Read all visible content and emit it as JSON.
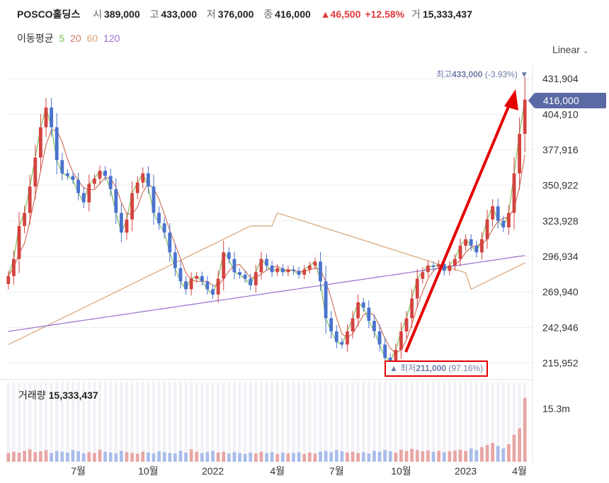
{
  "header": {
    "name": "POSCO홀딩스",
    "open_label": "시",
    "open": "389,000",
    "high_label": "고",
    "high": "433,000",
    "low_label": "저",
    "low": "376,000",
    "close_label": "종",
    "close": "416,000",
    "change": "▲46,500",
    "change_pct": "+12.58%",
    "volume_label": "거",
    "volume": "15,333,437"
  },
  "ma_legend": {
    "title": "이동평균",
    "items": [
      {
        "label": "5",
        "color": "#7fbf5a"
      },
      {
        "label": "20",
        "color": "#d2735f"
      },
      {
        "label": "60",
        "color": "#d7a478"
      },
      {
        "label": "120",
        "color": "#9a6fd0"
      }
    ]
  },
  "scale_mode": {
    "label": "Linear"
  },
  "annotations": {
    "high": {
      "label": "최고",
      "value": "433,000",
      "pct": "(-3.93%)"
    },
    "low": {
      "label": "최저",
      "value": "211,000",
      "pct": "(97.16%)"
    },
    "current": "416,000"
  },
  "volume_panel": {
    "label": "거래량",
    "value": "15,333,437",
    "axis_label": "15.3m"
  },
  "colors": {
    "up": "#d3433f",
    "down": "#4a72cf",
    "arrow": "#e50000",
    "current": "#5a6aa3"
  },
  "chart_data": {
    "type": "candlestick",
    "ylim": [
      205000,
      440000
    ],
    "yticks": [
      "431,904",
      "404,910",
      "377,916",
      "350,922",
      "323,928",
      "296,934",
      "269,940",
      "242,946",
      "215,952"
    ],
    "ytick_values": [
      431904,
      404910,
      377916,
      350922,
      323928,
      296934,
      269940,
      242946,
      215952
    ],
    "xticks": [
      "7월",
      "10월",
      "2022",
      "4월",
      "7월",
      "10월",
      "2023",
      "4월"
    ],
    "price": [
      282000,
      295000,
      320000,
      330000,
      350000,
      372000,
      395000,
      410000,
      395000,
      370000,
      360000,
      358000,
      355000,
      345000,
      338000,
      352000,
      356000,
      362000,
      358000,
      348000,
      330000,
      315000,
      325000,
      345000,
      353000,
      360000,
      350000,
      330000,
      322000,
      315000,
      300000,
      288000,
      278000,
      272000,
      280000,
      282000,
      278000,
      272000,
      268000,
      280000,
      300000,
      295000,
      285000,
      283000,
      280000,
      275000,
      285000,
      295000,
      290000,
      285000,
      288000,
      285000,
      287000,
      286000,
      283000,
      287000,
      290000,
      293000,
      278000,
      250000,
      240000,
      232000,
      230000,
      240000,
      250000,
      262000,
      258000,
      248000,
      240000,
      230000,
      220000,
      218000,
      226000,
      240000,
      250000,
      265000,
      280000,
      285000,
      290000,
      289000,
      291000,
      286000,
      290000,
      295000,
      305000,
      310000,
      305000,
      300000,
      310000,
      325000,
      335000,
      324000,
      319000,
      330000,
      360000,
      390000,
      416000
    ],
    "high_value": 433000,
    "low_value": 211000,
    "volume_peak": 15300000,
    "volume": [
      2.1,
      2.4,
      2.2,
      2.6,
      3.0,
      2.3,
      2.5,
      2.8,
      2.1,
      2.6,
      2.4,
      2.2,
      2.8,
      2.5,
      2.0,
      2.3,
      2.1,
      2.9,
      2.4,
      2.2,
      2.0,
      2.6,
      2.3,
      2.1,
      1.9,
      2.4,
      2.2,
      2.0,
      2.5,
      2.3,
      2.1,
      2.0,
      2.6,
      2.2,
      3.0,
      2.4,
      2.1,
      2.3,
      2.6,
      2.2,
      2.4,
      2.0,
      2.3,
      2.1,
      1.9,
      2.2,
      2.0,
      2.4,
      2.1,
      2.3,
      1.9,
      2.2,
      2.0,
      2.1,
      2.3,
      1.9,
      2.2,
      2.0,
      2.4,
      2.6,
      2.3,
      2.8,
      2.5,
      2.2,
      2.4,
      2.1,
      2.3,
      2.0,
      2.6,
      2.4,
      2.8,
      2.5,
      2.2,
      2.9,
      2.6,
      3.1,
      2.8,
      2.5,
      2.7,
      2.4,
      2.6,
      2.3,
      2.5,
      2.7,
      2.9,
      2.6,
      3.2,
      2.8,
      3.5,
      4.0,
      4.5,
      3.8,
      3.2,
      4.2,
      6.5,
      8.0,
      15.3
    ]
  }
}
